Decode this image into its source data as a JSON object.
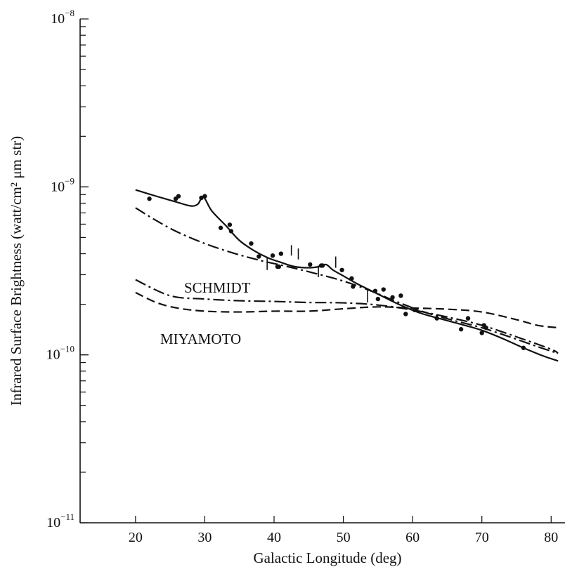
{
  "chart_data": {
    "type": "line",
    "xlabel": "Galactic Longitude (deg)",
    "ylabel": "Infrared Surface Brightness (watt/cm² μm str)",
    "xlim": [
      12,
      82
    ],
    "ylim": [
      1e-11,
      1e-08
    ],
    "yscale": "log",
    "x_ticks": [
      20,
      30,
      40,
      50,
      60,
      70,
      80
    ],
    "y_tick_labels": [
      {
        "value": 1e-08,
        "base": "10",
        "exp": "−8"
      },
      {
        "value": 1e-09,
        "base": "10",
        "exp": "−9"
      },
      {
        "value": 1e-10,
        "base": "10",
        "exp": "−10"
      },
      {
        "value": 1e-11,
        "base": "10",
        "exp": "−11"
      }
    ],
    "annotations": [
      "SCHMIDT",
      "MIYAMOTO"
    ],
    "series": [
      {
        "style": "solid",
        "x": [
          20,
          23,
          26,
          28,
          29,
          29.8,
          31,
          33,
          35,
          37,
          39,
          41,
          43,
          45,
          46.5,
          47.5,
          48.5,
          50,
          52,
          55,
          58,
          61,
          64,
          67,
          70,
          73,
          76,
          79,
          81
        ],
        "y": [
          9.6e-10,
          8.8e-10,
          8.1e-10,
          7.7e-10,
          7.9e-10,
          8.7e-10,
          7.2e-10,
          5.9e-10,
          4.8e-10,
          4.2e-10,
          3.8e-10,
          3.55e-10,
          3.35e-10,
          3.3e-10,
          3.35e-10,
          3.45e-10,
          3.2e-10,
          2.95e-10,
          2.65e-10,
          2.3e-10,
          2e-10,
          1.78e-10,
          1.64e-10,
          1.52e-10,
          1.4e-10,
          1.25e-10,
          1.1e-10,
          9.8e-11,
          9.2e-11
        ]
      },
      {
        "style": "dash-dot",
        "x": [
          20,
          23,
          26,
          30,
          34,
          38,
          42,
          46,
          50,
          54,
          58,
          62,
          66,
          70,
          74,
          78,
          81
        ],
        "y": [
          7.5e-10,
          6.3e-10,
          5.4e-10,
          4.6e-10,
          4.05e-10,
          3.65e-10,
          3.35e-10,
          3.05e-10,
          2.75e-10,
          2.4e-10,
          2.05e-10,
          1.78e-10,
          1.6e-10,
          1.45e-10,
          1.28e-10,
          1.12e-10,
          1.02e-10
        ]
      },
      {
        "style": "dash-dot",
        "name": "SCHMIDT",
        "x": [
          20,
          25,
          30,
          35,
          40,
          45,
          50,
          55,
          60,
          65,
          70,
          75,
          80,
          81
        ],
        "y": [
          2.8e-10,
          2.25e-10,
          2.15e-10,
          2.1e-10,
          2.08e-10,
          2.05e-10,
          2.04e-10,
          1.98e-10,
          1.85e-10,
          1.68e-10,
          1.5e-10,
          1.28e-10,
          1.08e-10,
          1.02e-10
        ]
      },
      {
        "style": "dashed",
        "name": "MIYAMOTO",
        "x": [
          20,
          23,
          26,
          30,
          35,
          40,
          45,
          50,
          55,
          60,
          65,
          70,
          75,
          78,
          81
        ],
        "y": [
          2.35e-10,
          2.05e-10,
          1.9e-10,
          1.82e-10,
          1.8e-10,
          1.82e-10,
          1.82e-10,
          1.88e-10,
          1.93e-10,
          1.9e-10,
          1.87e-10,
          1.8e-10,
          1.62e-10,
          1.5e-10,
          1.45e-10
        ]
      }
    ],
    "points": {
      "x": [
        22,
        25.8,
        26.2,
        29.5,
        30,
        32.3,
        33.6,
        33.8,
        36.7,
        37.8,
        39.8,
        40.5,
        40.7,
        41,
        45.2,
        46.8,
        47,
        49.8,
        51.2,
        51.4,
        54.6,
        55,
        55.8,
        57.1,
        58.3,
        59,
        60.3,
        63.5,
        67,
        68,
        70,
        70.3,
        70.6,
        76
      ],
      "y": [
        8.5e-10,
        8.5e-10,
        8.8e-10,
        8.6e-10,
        8.8e-10,
        5.7e-10,
        5.95e-10,
        5.45e-10,
        4.6e-10,
        3.85e-10,
        3.9e-10,
        3.35e-10,
        3.35e-10,
        4e-10,
        3.45e-10,
        3.4e-10,
        3.4e-10,
        3.2e-10,
        2.85e-10,
        2.55e-10,
        2.4e-10,
        2.15e-10,
        2.45e-10,
        2.2e-10,
        2.25e-10,
        1.75e-10,
        1.85e-10,
        1.65e-10,
        1.42e-10,
        1.65e-10,
        1.35e-10,
        1.5e-10,
        1.45e-10,
        1.1e-10
      ]
    },
    "error_bars": [
      {
        "x": 39,
        "y_low": 3.2e-10,
        "y_high": 3.8e-10
      },
      {
        "x": 42.5,
        "y_low": 3.9e-10,
        "y_high": 4.5e-10
      },
      {
        "x": 43.5,
        "y_low": 3.7e-10,
        "y_high": 4.3e-10
      },
      {
        "x": 46.4,
        "y_low": 2.9e-10,
        "y_high": 3.4e-10
      },
      {
        "x": 48.9,
        "y_low": 3.3e-10,
        "y_high": 3.85e-10
      },
      {
        "x": 53.5,
        "y_low": 2.05e-10,
        "y_high": 2.45e-10
      }
    ]
  }
}
